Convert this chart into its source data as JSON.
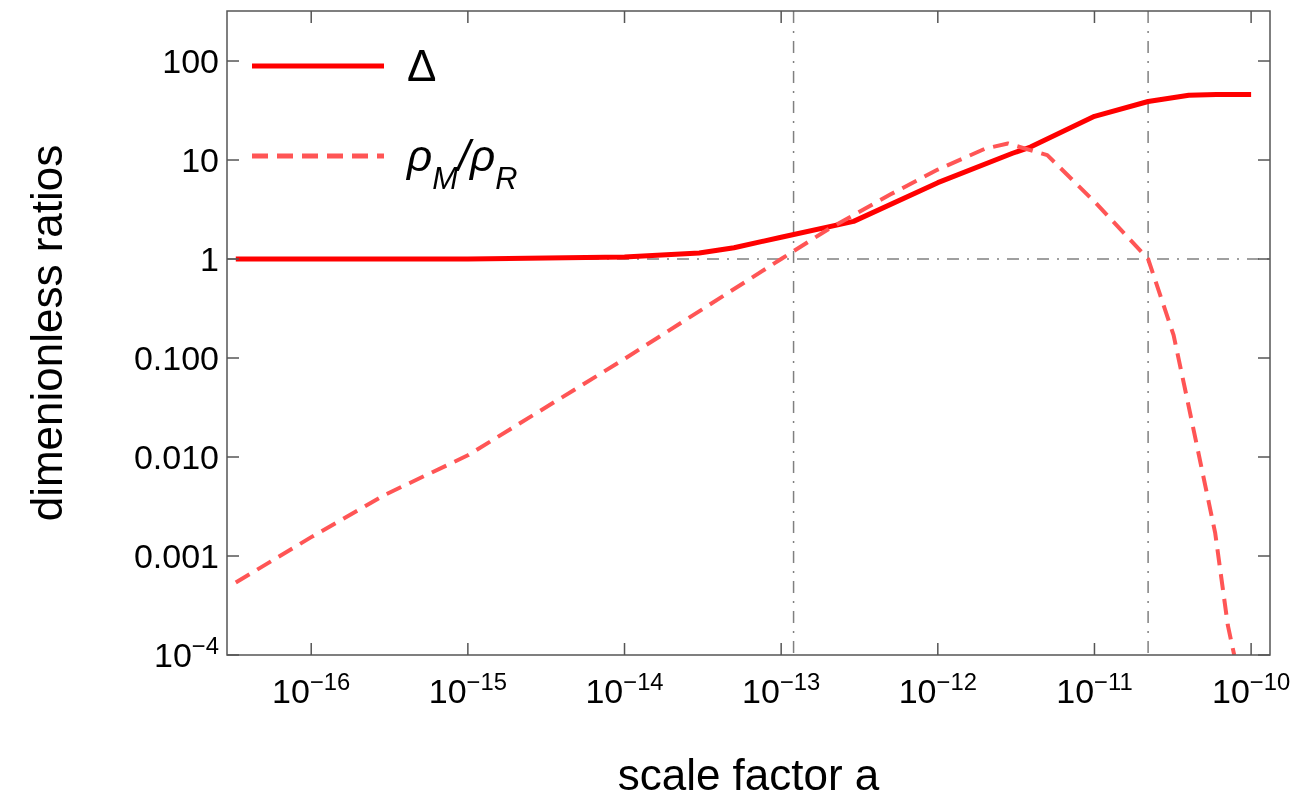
{
  "chart_data": {
    "type": "line",
    "xlabel": "scale factor  a",
    "ylabel": "dimenionless ratios",
    "log": "xy",
    "grid": false,
    "legend": "top left",
    "xlim": [
      2.9e-17,
      1.32e-10
    ],
    "xticks": [
      {
        "value": 1e-16,
        "label": "10$^{−16}$"
      },
      {
        "value": 1e-15,
        "label": "10$^{−15}$"
      },
      {
        "value": 1e-14,
        "label": "10$^{−14}$"
      },
      {
        "value": 1e-13,
        "label": "10$^{−13}$"
      },
      {
        "value": 1e-12,
        "label": "10$^{−12}$"
      },
      {
        "value": 1e-11,
        "label": "10$^{−11}$"
      },
      {
        "value": 1e-10,
        "label": "10$^{−10}$"
      }
    ],
    "ylim": [
      0.0001,
      320
    ],
    "yticks": [
      {
        "value": 0.0001,
        "label": "10$^{−4}$"
      },
      {
        "value": 0.001,
        "label": "0.001"
      },
      {
        "value": 0.01,
        "label": "0.010"
      },
      {
        "value": 0.1,
        "label": "0.100"
      },
      1,
      10,
      100
    ],
    "series": [
      {
        "name": "Δ",
        "color": "#ff0000",
        "line_style": "solid",
        "x": [
          3.3e-17,
          1e-16,
          1e-15,
          1e-14,
          3e-14,
          5e-14,
          1e-13,
          2.9e-13,
          1e-12,
          3e-12,
          3.9e-12,
          1e-11,
          2.2e-11,
          4e-11,
          6e-11,
          1e-10
        ],
        "values": [
          1,
          1,
          1,
          1.05,
          1.15,
          1.3,
          1.66,
          2.4,
          5.9,
          11.7,
          13.5,
          27.6,
          39,
          45,
          46,
          46
        ]
      },
      {
        "name": "ρ$_{M}$/ρ$_{R}$",
        "color": "#ff5555",
        "line_style": "dashed",
        "x": [
          3.3e-17,
          1e-16,
          3e-16,
          1e-15,
          1e-14,
          1e-13,
          2e-13,
          5e-13,
          1e-12,
          2e-12,
          2.8e-12,
          5e-12,
          1e-11,
          2.2e-11,
          3.2e-11,
          3.9e-11,
          5.9e-11,
          7.1e-11,
          7.8e-11
        ],
        "values": [
          0.00054,
          0.00155,
          0.0042,
          0.0104,
          0.098,
          1,
          2,
          4.5,
          8,
          13,
          14.7,
          11.2,
          3.8,
          1,
          0.17,
          0.039,
          0.0017,
          0.0002,
          0.0001
        ]
      }
    ],
    "ref_lines": [
      {
        "axis": "x",
        "value": 1.2e-13,
        "color": "#808080",
        "line_style": "dashdot"
      },
      {
        "axis": "x",
        "value": 2.2e-11,
        "color": "#808080",
        "line_style": "dashdot"
      },
      {
        "axis": "y",
        "value": 1,
        "color": "#808080",
        "line_style": "dashdot"
      }
    ]
  }
}
